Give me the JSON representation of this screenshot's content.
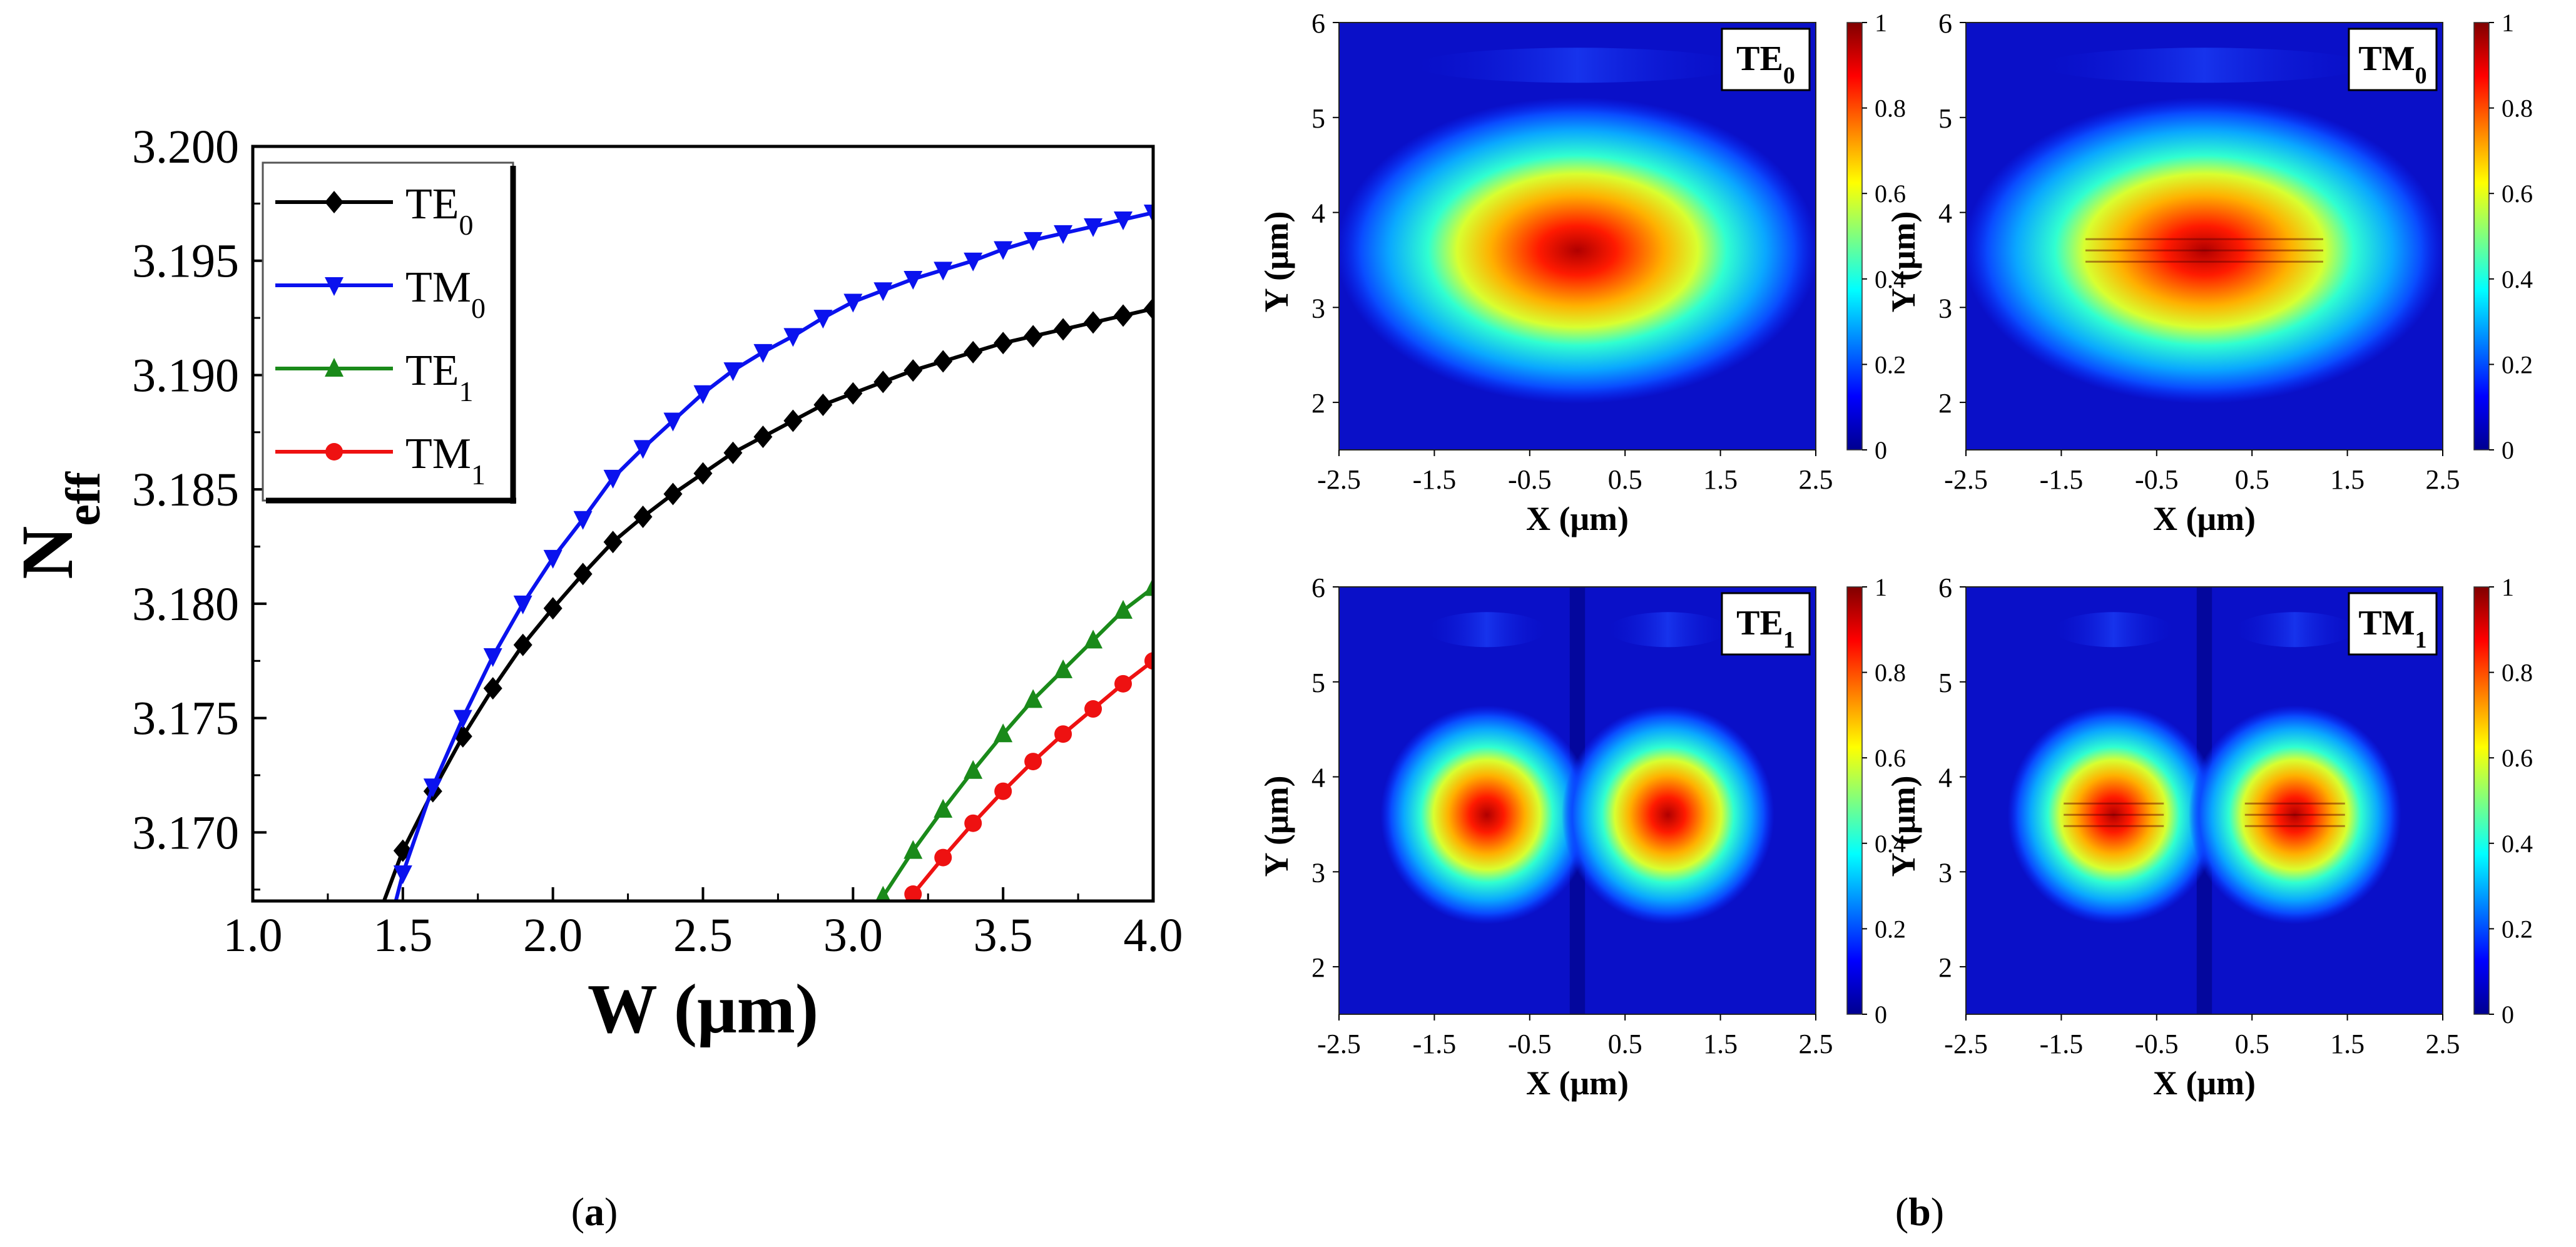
{
  "figure": {
    "panel_a_label": "a",
    "panel_b_label": "b"
  },
  "chart_data": [
    {
      "type": "line",
      "panel": "a",
      "xlabel": "W (μm)",
      "ylabel_main": "N",
      "ylabel_sub": "eff",
      "xlim": [
        1.0,
        4.0
      ],
      "ylim": [
        3.167,
        3.2
      ],
      "x_ticks": [
        "1.0",
        "1.5",
        "2.0",
        "2.5",
        "3.0",
        "3.5",
        "4.0"
      ],
      "y_ticks": [
        "3.170",
        "3.175",
        "3.180",
        "3.185",
        "3.190",
        "3.195",
        "3.200"
      ],
      "legend_position": "top-left",
      "series": [
        {
          "name": "TE",
          "sub": "0",
          "color": "#000000",
          "marker": "diamond",
          "x": [
            1.5,
            1.6,
            1.7,
            1.8,
            1.9,
            2.0,
            2.1,
            2.2,
            2.3,
            2.4,
            2.5,
            2.6,
            2.7,
            2.8,
            2.9,
            3.0,
            3.1,
            3.2,
            3.3,
            3.4,
            3.5,
            3.6,
            3.7,
            3.8,
            3.9,
            4.0
          ],
          "y": [
            3.1692,
            3.1718,
            3.1742,
            3.1763,
            3.1782,
            3.1798,
            3.1813,
            3.1827,
            3.1838,
            3.1848,
            3.1857,
            3.1866,
            3.1873,
            3.188,
            3.1887,
            3.1892,
            3.1897,
            3.1902,
            3.1906,
            3.191,
            3.1914,
            3.1917,
            3.192,
            3.1923,
            3.1926,
            3.1929
          ]
        },
        {
          "name": "TM",
          "sub": "0",
          "color": "#0a12ee",
          "marker": "triangle-down",
          "x": [
            1.5,
            1.6,
            1.7,
            1.8,
            1.9,
            2.0,
            2.1,
            2.2,
            2.3,
            2.4,
            2.5,
            2.6,
            2.7,
            2.8,
            2.9,
            3.0,
            3.1,
            3.2,
            3.3,
            3.4,
            3.5,
            3.6,
            3.7,
            3.8,
            3.9,
            4.0
          ],
          "y": [
            3.1682,
            3.172,
            3.175,
            3.1777,
            3.18,
            3.182,
            3.1837,
            3.1855,
            3.1868,
            3.188,
            3.1892,
            3.1902,
            3.191,
            3.1917,
            3.1925,
            3.1932,
            3.1937,
            3.1942,
            3.1946,
            3.195,
            3.1955,
            3.1959,
            3.1962,
            3.1965,
            3.1968,
            3.1971
          ]
        },
        {
          "name": "TE",
          "sub": "1",
          "color": "#1a8a1a",
          "marker": "triangle-up",
          "x": [
            3.1,
            3.2,
            3.3,
            3.4,
            3.5,
            3.6,
            3.7,
            3.8,
            3.9,
            4.0
          ],
          "y": [
            3.1672,
            3.1692,
            3.171,
            3.1727,
            3.1743,
            3.1758,
            3.1771,
            3.1784,
            3.1797,
            3.1807
          ]
        },
        {
          "name": "TM",
          "sub": "1",
          "color": "#ee1111",
          "marker": "circle",
          "x": [
            3.2,
            3.3,
            3.4,
            3.5,
            3.6,
            3.7,
            3.8,
            3.9,
            4.0
          ],
          "y": [
            3.1673,
            3.1689,
            3.1704,
            3.1718,
            3.1731,
            3.1743,
            3.1754,
            3.1765,
            3.1775
          ]
        }
      ]
    },
    {
      "type": "heatmap",
      "panel": "b",
      "title": "TE",
      "title_sub": "0",
      "xlabel": "X (μm)",
      "ylabel": "Y (μm)",
      "xlim": [
        -2.5,
        2.5
      ],
      "ylim": [
        1.5,
        6.0
      ],
      "x_ticks": [
        "-2.5",
        "-1.5",
        "-0.5",
        "0.5",
        "1.5",
        "2.5"
      ],
      "y_ticks": [
        "2",
        "3",
        "4",
        "5",
        "6"
      ],
      "colorbar_ticks": [
        "0",
        "0.2",
        "0.4",
        "0.6",
        "0.8",
        "1"
      ],
      "lobes": [
        0.0
      ],
      "center_y": 3.6,
      "striped": false
    },
    {
      "type": "heatmap",
      "panel": "b",
      "title": "TM",
      "title_sub": "0",
      "xlabel": "X (μm)",
      "ylabel": "Y (μm)",
      "xlim": [
        -2.5,
        2.5
      ],
      "ylim": [
        1.5,
        6.0
      ],
      "x_ticks": [
        "-2.5",
        "-1.5",
        "-0.5",
        "0.5",
        "1.5",
        "2.5"
      ],
      "y_ticks": [
        "2",
        "3",
        "4",
        "5",
        "6"
      ],
      "colorbar_ticks": [
        "0",
        "0.2",
        "0.4",
        "0.6",
        "0.8",
        "1"
      ],
      "lobes": [
        0.0
      ],
      "center_y": 3.6,
      "striped": true
    },
    {
      "type": "heatmap",
      "panel": "b",
      "title": "TE",
      "title_sub": "1",
      "xlabel": "X (μm)",
      "ylabel": "Y (μm)",
      "xlim": [
        -2.5,
        2.5
      ],
      "ylim": [
        1.5,
        6.0
      ],
      "x_ticks": [
        "-2.5",
        "-1.5",
        "-0.5",
        "0.5",
        "1.5",
        "2.5"
      ],
      "y_ticks": [
        "2",
        "3",
        "4",
        "5",
        "6"
      ],
      "colorbar_ticks": [
        "0",
        "0.2",
        "0.4",
        "0.6",
        "0.8",
        "1"
      ],
      "lobes": [
        -0.95,
        0.95
      ],
      "center_y": 3.6,
      "striped": false
    },
    {
      "type": "heatmap",
      "panel": "b",
      "title": "TM",
      "title_sub": "1",
      "xlabel": "X (μm)",
      "ylabel": "Y (μm)",
      "xlim": [
        -2.5,
        2.5
      ],
      "ylim": [
        1.5,
        6.0
      ],
      "x_ticks": [
        "-2.5",
        "-1.5",
        "-0.5",
        "0.5",
        "1.5",
        "2.5"
      ],
      "y_ticks": [
        "2",
        "3",
        "4",
        "5",
        "6"
      ],
      "colorbar_ticks": [
        "0",
        "0.2",
        "0.4",
        "0.6",
        "0.8",
        "1"
      ],
      "lobes": [
        -0.95,
        0.95
      ],
      "center_y": 3.6,
      "striped": true
    }
  ]
}
